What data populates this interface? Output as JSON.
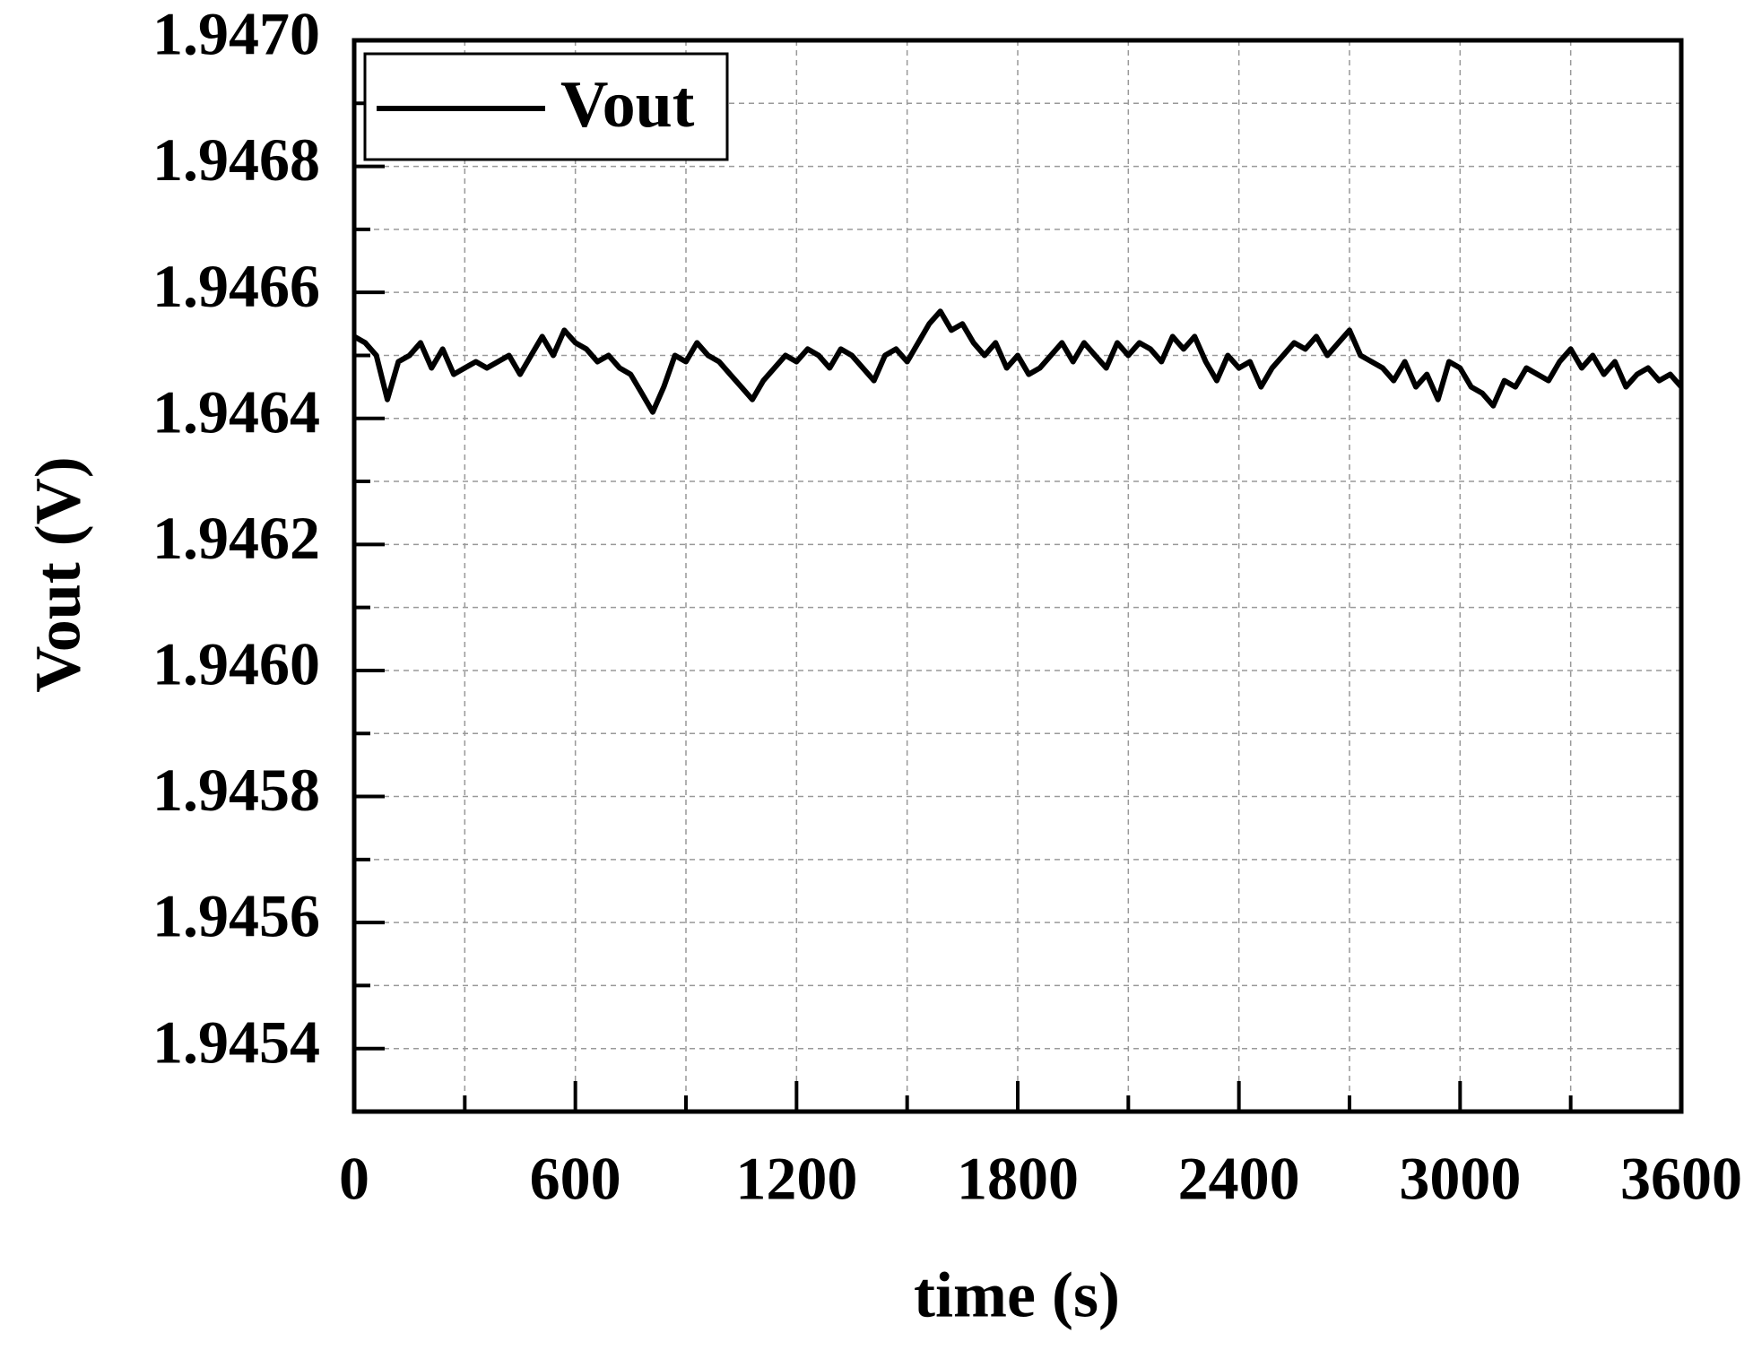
{
  "chart_data": {
    "type": "line",
    "x_label": "time (s)",
    "y_label": "Vout (V)",
    "x": [
      0,
      30,
      60,
      90,
      120,
      150,
      180,
      210,
      240,
      270,
      300,
      330,
      360,
      390,
      420,
      450,
      480,
      510,
      540,
      570,
      600,
      630,
      660,
      690,
      720,
      750,
      780,
      810,
      840,
      870,
      900,
      930,
      960,
      990,
      1020,
      1050,
      1080,
      1110,
      1140,
      1170,
      1200,
      1230,
      1260,
      1290,
      1320,
      1350,
      1380,
      1410,
      1440,
      1470,
      1500,
      1530,
      1560,
      1590,
      1620,
      1650,
      1680,
      1710,
      1740,
      1770,
      1800,
      1830,
      1860,
      1890,
      1920,
      1950,
      1980,
      2010,
      2040,
      2070,
      2100,
      2130,
      2160,
      2190,
      2220,
      2250,
      2280,
      2310,
      2340,
      2370,
      2400,
      2430,
      2460,
      2490,
      2520,
      2550,
      2580,
      2610,
      2640,
      2670,
      2700,
      2730,
      2760,
      2790,
      2820,
      2850,
      2880,
      2910,
      2940,
      2970,
      3000,
      3030,
      3060,
      3090,
      3120,
      3150,
      3180,
      3210,
      3240,
      3270,
      3300,
      3330,
      3360,
      3390,
      3420,
      3450,
      3480,
      3510,
      3540,
      3570,
      3600
    ],
    "series": [
      {
        "name": "Vout",
        "color": "#000000",
        "values": [
          1.94653,
          1.94652,
          1.9465,
          1.94643,
          1.94649,
          1.9465,
          1.94652,
          1.94648,
          1.94651,
          1.94647,
          1.94648,
          1.94649,
          1.94648,
          1.94649,
          1.9465,
          1.94647,
          1.9465,
          1.94653,
          1.9465,
          1.94654,
          1.94652,
          1.94651,
          1.94649,
          1.9465,
          1.94648,
          1.94647,
          1.94644,
          1.94641,
          1.94645,
          1.9465,
          1.94649,
          1.94652,
          1.9465,
          1.94649,
          1.94647,
          1.94645,
          1.94643,
          1.94646,
          1.94648,
          1.9465,
          1.94649,
          1.94651,
          1.9465,
          1.94648,
          1.94651,
          1.9465,
          1.94648,
          1.94646,
          1.9465,
          1.94651,
          1.94649,
          1.94652,
          1.94655,
          1.94657,
          1.94654,
          1.94655,
          1.94652,
          1.9465,
          1.94652,
          1.94648,
          1.9465,
          1.94647,
          1.94648,
          1.9465,
          1.94652,
          1.94649,
          1.94652,
          1.9465,
          1.94648,
          1.94652,
          1.9465,
          1.94652,
          1.94651,
          1.94649,
          1.94653,
          1.94651,
          1.94653,
          1.94649,
          1.94646,
          1.9465,
          1.94648,
          1.94649,
          1.94645,
          1.94648,
          1.9465,
          1.94652,
          1.94651,
          1.94653,
          1.9465,
          1.94652,
          1.94654,
          1.9465,
          1.94649,
          1.94648,
          1.94646,
          1.94649,
          1.94645,
          1.94647,
          1.94643,
          1.94649,
          1.94648,
          1.94645,
          1.94644,
          1.94642,
          1.94646,
          1.94645,
          1.94648,
          1.94647,
          1.94646,
          1.94649,
          1.94651,
          1.94648,
          1.9465,
          1.94647,
          1.94649,
          1.94645,
          1.94647,
          1.94648,
          1.94646,
          1.94647,
          1.94645
        ]
      }
    ],
    "xlim": [
      0,
      3600
    ],
    "xticks": [
      0,
      600,
      1200,
      1800,
      2400,
      3000,
      3600
    ],
    "ylim": [
      1.9453,
      1.947
    ],
    "yticks": [
      1.9454,
      1.9456,
      1.9458,
      {
        "value": 1.946,
        "label": "1.9460"
      },
      1.9462,
      1.9464,
      1.9466,
      1.9468,
      {
        "value": 1.947,
        "label": "1.9470"
      }
    ],
    "grid": true,
    "legend": "upper left"
  }
}
